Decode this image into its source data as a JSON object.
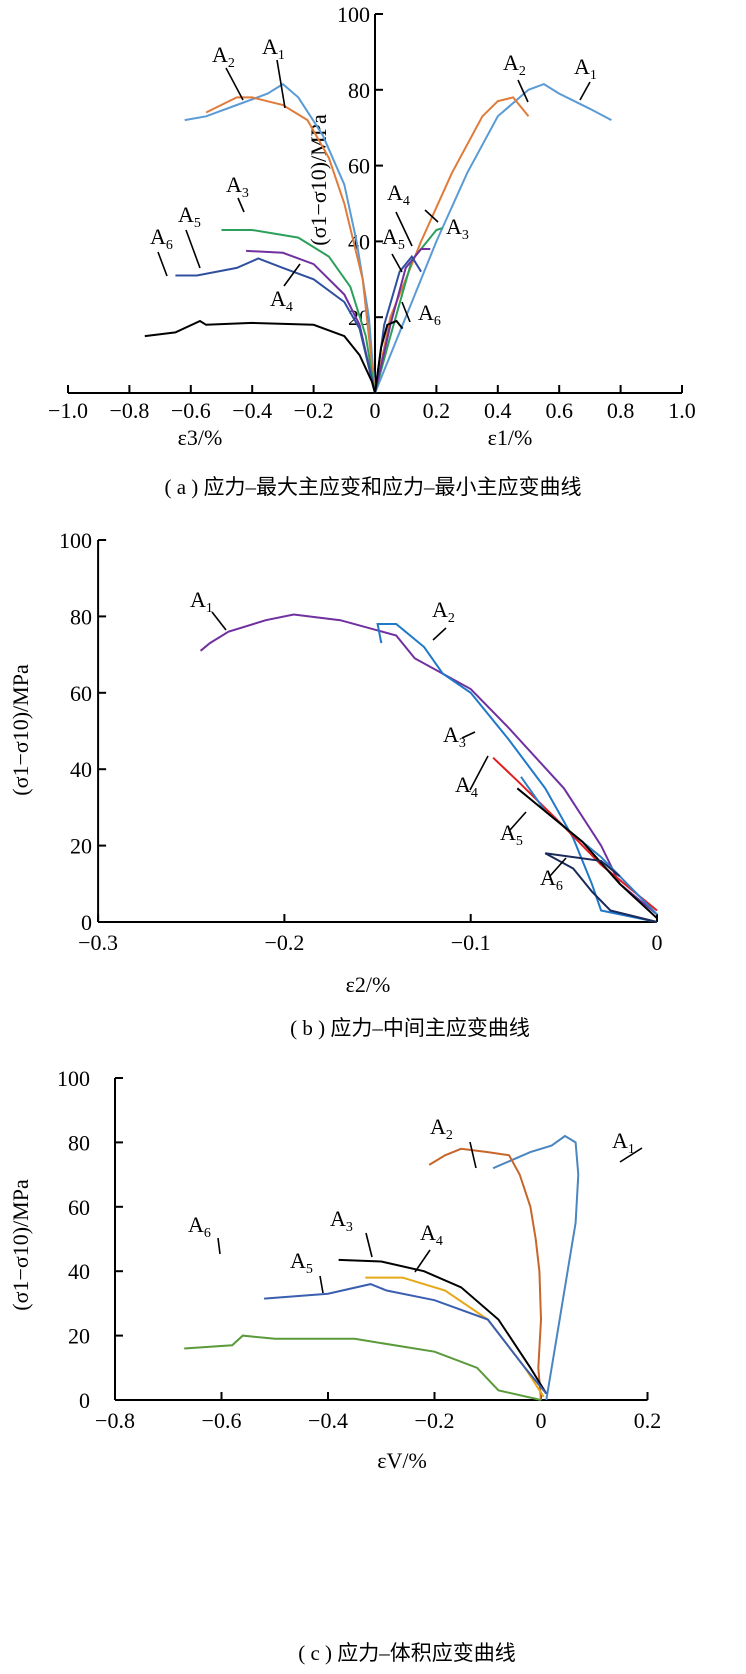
{
  "chart_data": [
    {
      "type": "line",
      "panel": "a",
      "caption": "( a ) 应力–最大主应变和应力–最小主应变曲线",
      "ylabel": "(σ1−σ10)/MPa",
      "xlabel_left": "ε3/%",
      "xlabel_right": "ε1/%",
      "xlim": [
        -1.0,
        1.0
      ],
      "ylim": [
        0,
        100
      ],
      "xticks": [
        "−1.0",
        "−0.8",
        "−0.6",
        "−0.4",
        "−0.2",
        "0",
        "0.2",
        "0.4",
        "0.6",
        "0.8",
        "1.0"
      ],
      "yticks": [
        "20",
        "40",
        "60",
        "80",
        "100"
      ],
      "series": [
        {
          "name": "A1",
          "color": "#5b9bd5",
          "eps1": [
            [
              0,
              0
            ],
            [
              0.1,
              20
            ],
            [
              0.2,
              40
            ],
            [
              0.3,
              58
            ],
            [
              0.4,
              73
            ],
            [
              0.5,
              80
            ],
            [
              0.55,
              81.5
            ],
            [
              0.6,
              79
            ],
            [
              0.65,
              77
            ],
            [
              0.7,
              75
            ],
            [
              0.77,
              72
            ]
          ],
          "eps3": [
            [
              0,
              0
            ],
            [
              -0.02,
              20
            ],
            [
              -0.06,
              40
            ],
            [
              -0.1,
              55
            ],
            [
              -0.17,
              68
            ],
            [
              -0.25,
              78
            ],
            [
              -0.3,
              81.5
            ],
            [
              -0.35,
              79
            ],
            [
              -0.45,
              76
            ],
            [
              -0.55,
              73
            ],
            [
              -0.62,
              72
            ]
          ]
        },
        {
          "name": "A2",
          "color": "#e07b39",
          "eps1": [
            [
              0,
              0
            ],
            [
              0.05,
              20
            ],
            [
              0.15,
              40
            ],
            [
              0.25,
              58
            ],
            [
              0.35,
              73
            ],
            [
              0.4,
              77
            ],
            [
              0.45,
              78
            ],
            [
              0.48,
              75
            ],
            [
              0.5,
              73
            ]
          ],
          "eps3": [
            [
              0,
              0
            ],
            [
              -0.04,
              30
            ],
            [
              -0.1,
              50
            ],
            [
              -0.15,
              62
            ],
            [
              -0.22,
              72
            ],
            [
              -0.3,
              76
            ],
            [
              -0.4,
              78
            ],
            [
              -0.45,
              78
            ],
            [
              -0.55,
              74
            ]
          ]
        },
        {
          "name": "A3",
          "color": "#2ca05a",
          "eps1": [
            [
              0,
              0
            ],
            [
              0.05,
              15
            ],
            [
              0.12,
              35
            ],
            [
              0.2,
              43
            ],
            [
              0.22,
              43.5
            ]
          ],
          "eps3": [
            [
              0,
              0
            ],
            [
              -0.03,
              15
            ],
            [
              -0.08,
              28
            ],
            [
              -0.15,
              36
            ],
            [
              -0.25,
              41
            ],
            [
              -0.4,
              43
            ],
            [
              -0.5,
              43
            ]
          ]
        },
        {
          "name": "A4",
          "color": "#7030a0",
          "eps1": [
            [
              0,
              0
            ],
            [
              0.05,
              18
            ],
            [
              0.1,
              33
            ],
            [
              0.15,
              38
            ],
            [
              0.18,
              38
            ]
          ],
          "eps3": [
            [
              0,
              0
            ],
            [
              -0.05,
              18
            ],
            [
              -0.1,
              26
            ],
            [
              -0.2,
              34
            ],
            [
              -0.3,
              37
            ],
            [
              -0.42,
              37.5
            ]
          ]
        },
        {
          "name": "A5",
          "color": "#2f4f9f",
          "eps1": [
            [
              0,
              0
            ],
            [
              0.03,
              18
            ],
            [
              0.08,
              32
            ],
            [
              0.12,
              36
            ],
            [
              0.15,
              32
            ]
          ],
          "eps3": [
            [
              0,
              0
            ],
            [
              -0.05,
              17
            ],
            [
              -0.1,
              24
            ],
            [
              -0.2,
              30
            ],
            [
              -0.3,
              33
            ],
            [
              -0.38,
              35.5
            ],
            [
              -0.45,
              33
            ],
            [
              -0.58,
              31
            ],
            [
              -0.65,
              31
            ]
          ]
        },
        {
          "name": "A6",
          "color": "#000000",
          "eps1": [
            [
              0,
              0
            ],
            [
              0.02,
              12
            ],
            [
              0.04,
              18
            ],
            [
              0.07,
              19
            ],
            [
              0.09,
              17
            ]
          ],
          "eps3": [
            [
              0,
              0
            ],
            [
              -0.01,
              3
            ],
            [
              -0.05,
              10
            ],
            [
              -0.1,
              15
            ],
            [
              -0.2,
              18
            ],
            [
              -0.4,
              18.5
            ],
            [
              -0.55,
              18
            ],
            [
              -0.57,
              19
            ],
            [
              -0.65,
              16
            ],
            [
              -0.75,
              15
            ]
          ]
        }
      ]
    },
    {
      "type": "line",
      "panel": "b",
      "caption": "( b ) 应力–中间主应变曲线",
      "ylabel": "(σ1−σ10)/MPa",
      "xlabel": "ε2/%",
      "xlim": [
        -0.3,
        0
      ],
      "ylim": [
        0,
        100
      ],
      "xticks": [
        "−0.3",
        "−0.2",
        "−0.1",
        "0"
      ],
      "yticks": [
        "0",
        "20",
        "40",
        "60",
        "80",
        "100"
      ],
      "series": [
        {
          "name": "A1",
          "color": "#7030a0",
          "points": [
            [
              -0.245,
              71
            ],
            [
              -0.24,
              73
            ],
            [
              -0.23,
              76
            ],
            [
              -0.21,
              79
            ],
            [
              -0.195,
              80.5
            ],
            [
              -0.17,
              79
            ],
            [
              -0.14,
              75
            ],
            [
              -0.13,
              69
            ],
            [
              -0.1,
              61
            ],
            [
              -0.08,
              51
            ],
            [
              -0.05,
              35
            ],
            [
              -0.03,
              20
            ],
            [
              -0.02,
              10
            ],
            [
              0,
              2
            ]
          ]
        },
        {
          "name": "A2",
          "color": "#1f78c8",
          "points": [
            [
              -0.148,
              73
            ],
            [
              -0.15,
              78
            ],
            [
              -0.14,
              78
            ],
            [
              -0.125,
              72
            ],
            [
              -0.115,
              65
            ],
            [
              -0.1,
              60
            ],
            [
              -0.08,
              48
            ],
            [
              -0.06,
              35
            ],
            [
              -0.045,
              22
            ],
            [
              -0.035,
              10
            ],
            [
              -0.03,
              3
            ],
            [
              0,
              0
            ]
          ]
        },
        {
          "name": "A3",
          "color": "#e02020",
          "points": [
            [
              -0.088,
              43
            ],
            [
              -0.075,
              37
            ],
            [
              -0.05,
              25
            ],
            [
              -0.03,
              15
            ],
            [
              -0.01,
              7
            ],
            [
              0,
              3
            ]
          ]
        },
        {
          "name": "A4",
          "color": "#2f7fc8",
          "points": [
            [
              -0.073,
              38
            ],
            [
              -0.06,
              29
            ],
            [
              -0.03,
              17
            ],
            [
              0,
              2
            ]
          ]
        },
        {
          "name": "A5",
          "color": "#000000",
          "points": [
            [
              -0.075,
              35
            ],
            [
              -0.065,
              31
            ],
            [
              -0.04,
              21
            ],
            [
              -0.02,
              10
            ],
            [
              0,
              1
            ]
          ]
        },
        {
          "name": "A6",
          "color": "#1a2a5a",
          "points": [
            [
              -0.02,
              12
            ],
            [
              -0.03,
              16
            ],
            [
              -0.06,
              18
            ],
            [
              -0.045,
              14
            ],
            [
              -0.035,
              8
            ],
            [
              -0.025,
              3
            ],
            [
              0,
              0
            ]
          ]
        }
      ]
    },
    {
      "type": "line",
      "panel": "c",
      "caption": "( c ) 应力–体积应变曲线",
      "ylabel": "(σ1−σ10)/MPa",
      "xlabel": "εV/%",
      "xlim": [
        -0.8,
        0.2
      ],
      "ylim": [
        0,
        100
      ],
      "xticks": [
        "−0.8",
        "−0.6",
        "−0.4",
        "−0.2",
        "0",
        "0.2"
      ],
      "yticks": [
        "0",
        "20",
        "40",
        "60",
        "80",
        "100"
      ],
      "series": [
        {
          "name": "A1",
          "color": "#4a86c0",
          "points": [
            [
              0.01,
              0
            ],
            [
              0.03,
              20
            ],
            [
              0.05,
              40
            ],
            [
              0.065,
              55
            ],
            [
              0.07,
              70
            ],
            [
              0.065,
              80
            ],
            [
              0.045,
              82
            ],
            [
              0.02,
              79
            ],
            [
              -0.02,
              77
            ],
            [
              -0.09,
              72
            ]
          ]
        },
        {
          "name": "A2",
          "color": "#c8652a",
          "points": [
            [
              0,
              0
            ],
            [
              -0.005,
              10
            ],
            [
              0,
              25
            ],
            [
              -0.003,
              40
            ],
            [
              -0.01,
              50
            ],
            [
              -0.02,
              60
            ],
            [
              -0.04,
              70
            ],
            [
              -0.06,
              76
            ],
            [
              -0.1,
              77
            ],
            [
              -0.15,
              78
            ],
            [
              -0.18,
              76
            ],
            [
              -0.21,
              73
            ]
          ]
        },
        {
          "name": "A3",
          "color": "#000000",
          "points": [
            [
              0.01,
              2
            ],
            [
              -0.02,
              10
            ],
            [
              -0.08,
              25
            ],
            [
              -0.15,
              35
            ],
            [
              -0.22,
              40
            ],
            [
              -0.3,
              43
            ],
            [
              -0.38,
              43.5
            ]
          ]
        },
        {
          "name": "A4",
          "color": "#e6a817",
          "points": [
            [
              0.005,
              1
            ],
            [
              -0.03,
              10
            ],
            [
              -0.1,
              25
            ],
            [
              -0.18,
              34
            ],
            [
              -0.26,
              38
            ],
            [
              -0.33,
              38
            ]
          ]
        },
        {
          "name": "A5",
          "color": "#3a5fb0",
          "points": [
            [
              0.01,
              2
            ],
            [
              -0.03,
              10
            ],
            [
              -0.1,
              25
            ],
            [
              -0.2,
              31
            ],
            [
              -0.29,
              34
            ],
            [
              -0.32,
              36
            ],
            [
              -0.4,
              33
            ],
            [
              -0.52,
              31.5
            ]
          ]
        },
        {
          "name": "A6",
          "color": "#5a9a3a",
          "points": [
            [
              0,
              0
            ],
            [
              -0.08,
              3
            ],
            [
              -0.12,
              10
            ],
            [
              -0.2,
              15
            ],
            [
              -0.35,
              19
            ],
            [
              -0.5,
              19
            ],
            [
              -0.56,
              20
            ],
            [
              -0.58,
              17
            ],
            [
              -0.67,
              16
            ]
          ]
        }
      ]
    }
  ]
}
